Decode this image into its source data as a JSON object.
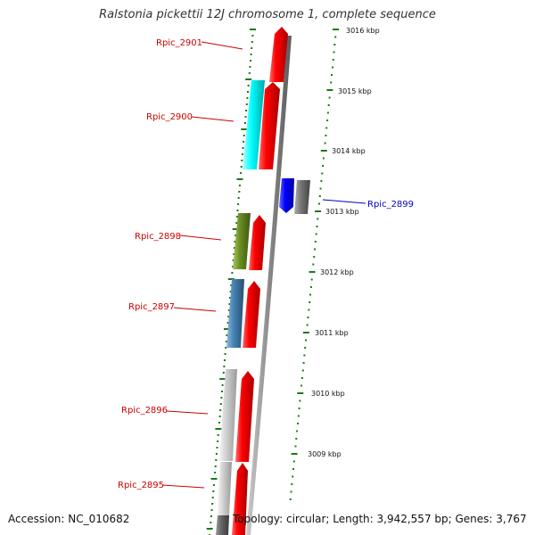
{
  "title": "Ralstonia pickettii 12J chromosome 1, complete sequence",
  "footer": {
    "accession_label": "Accession: NC_010682",
    "summary": "Topology: circular; Length: 3,942,557 bp; Genes: 3,767"
  },
  "colors": {
    "forward_gene": "#ff0000",
    "reverse_gene_label": "#0000cc",
    "gene_label_forward": "#cc0000",
    "tick_marks": "#1a7a1a",
    "backbone": "#888888"
  },
  "kbp_markers": [
    "3016 kbp",
    "3015 kbp",
    "3014 kbp",
    "3013 kbp",
    "3012 kbp",
    "3011 kbp",
    "3010 kbp",
    "3009 kbp"
  ],
  "genes": [
    {
      "label": "Rpic_2901",
      "strand": "forward",
      "label_color": "#cc0000"
    },
    {
      "label": "Rpic_2900",
      "strand": "forward",
      "label_color": "#cc0000"
    },
    {
      "label": "Rpic_2899",
      "strand": "reverse",
      "label_color": "#0000cc"
    },
    {
      "label": "Rpic_2898",
      "strand": "forward",
      "label_color": "#cc0000"
    },
    {
      "label": "Rpic_2897",
      "strand": "forward",
      "label_color": "#cc0000"
    },
    {
      "label": "Rpic_2896",
      "strand": "forward",
      "label_color": "#cc0000"
    },
    {
      "label": "Rpic_2895",
      "strand": "forward",
      "label_color": "#cc0000"
    }
  ],
  "features": [
    {
      "name": "cyan-feature",
      "color": "#00ffff"
    },
    {
      "name": "blue-feature",
      "color": "#0000ff"
    },
    {
      "name": "gray-feature",
      "color": "#777777"
    },
    {
      "name": "olive-feature",
      "color": "#6b8e23"
    },
    {
      "name": "steelblue-feature",
      "color": "#4682b4"
    },
    {
      "name": "lightgray-feature",
      "color": "#cccccc"
    }
  ]
}
